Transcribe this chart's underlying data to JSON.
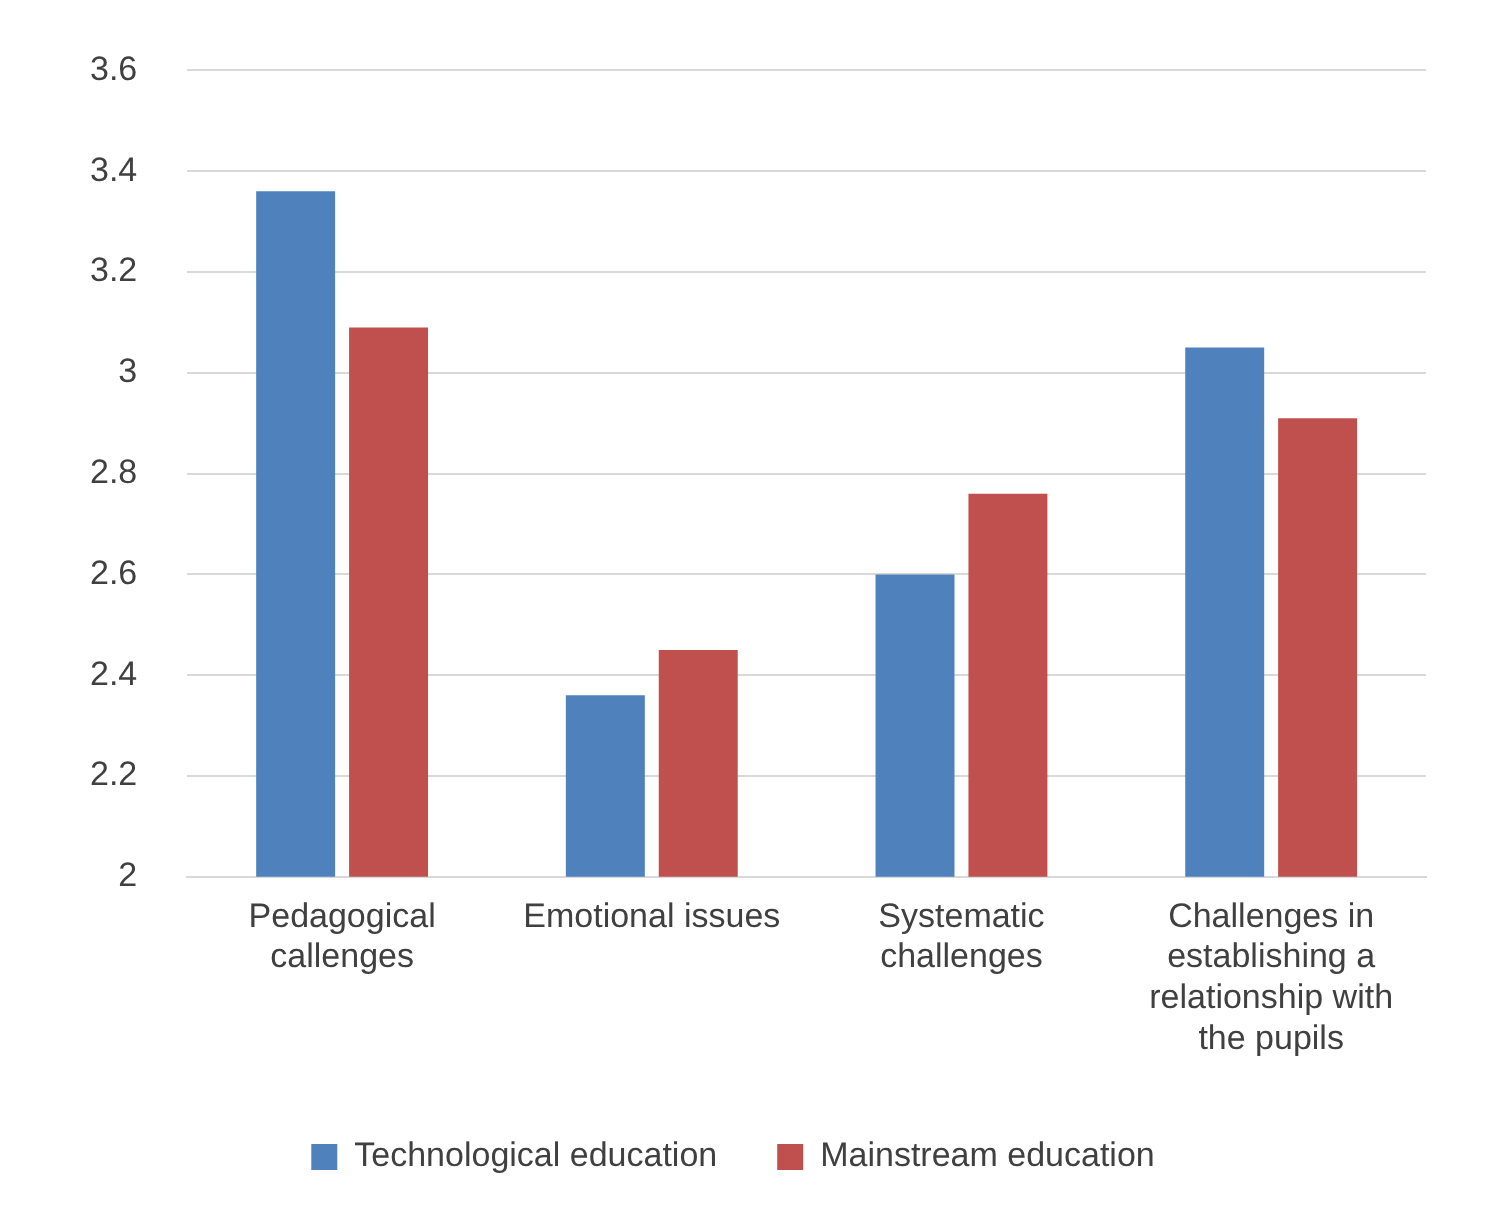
{
  "chart_data": {
    "type": "bar",
    "categories": [
      "Pedagogical callenges",
      "Emotional issues",
      "Systematic challenges",
      "Challenges in establishing a relationship with the pupils"
    ],
    "series": [
      {
        "name": "Technological education",
        "color": "#4f81bd",
        "values": [
          3.36,
          2.36,
          2.6,
          3.05
        ]
      },
      {
        "name": "Mainstream education",
        "color": "#c0504d",
        "values": [
          3.09,
          2.45,
          2.76,
          2.91
        ]
      }
    ],
    "ylim": [
      2,
      3.6
    ],
    "yticks": [
      2,
      2.2,
      2.4,
      2.6,
      2.8,
      3,
      3.2,
      3.4,
      3.6
    ],
    "grid": "y",
    "legend": "bottom"
  }
}
